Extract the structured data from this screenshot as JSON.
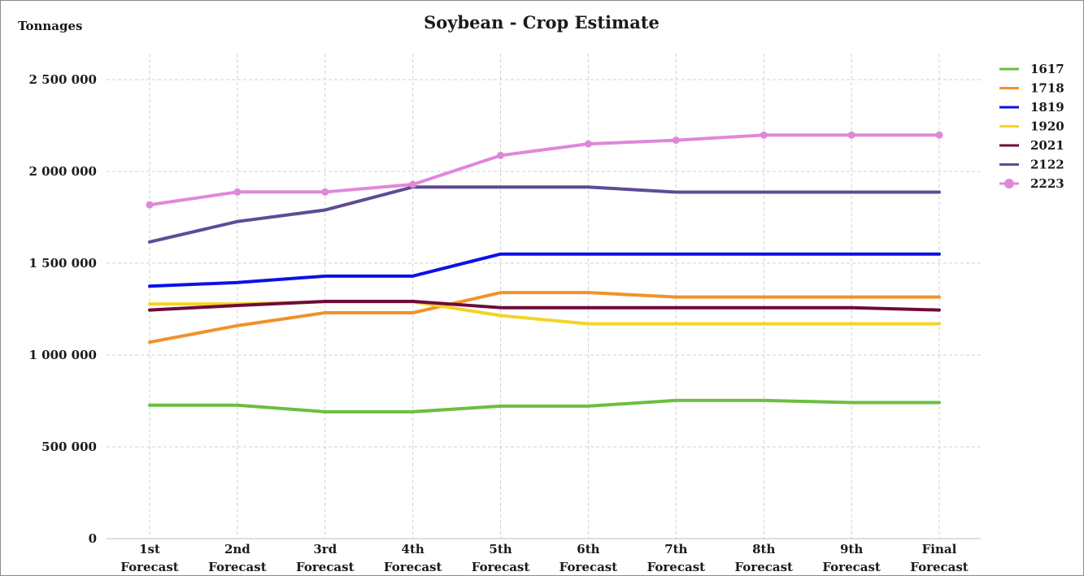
{
  "chart_data": {
    "type": "line",
    "title": "Soybean - Crop Estimate",
    "ylabel": "Tonnages",
    "xlabel": "",
    "ylim": [
      0,
      2500000
    ],
    "ytick_values": [
      0,
      500000,
      1000000,
      1500000,
      2000000,
      2500000
    ],
    "ytick_labels": [
      "0",
      "500 000",
      "1 000 000",
      "1 500 000",
      "2 000 000",
      "2 500 000"
    ],
    "categories": [
      [
        "1st",
        "Forecast"
      ],
      [
        "2nd",
        "Forecast"
      ],
      [
        "3rd",
        "Forecast"
      ],
      [
        "4th",
        "Forecast"
      ],
      [
        "5th",
        "Forecast"
      ],
      [
        "6th",
        "Forecast"
      ],
      [
        "7th",
        "Forecast"
      ],
      [
        "8th",
        "Forecast"
      ],
      [
        "9th",
        "Forecast"
      ],
      [
        "Final",
        "Forecast"
      ]
    ],
    "grid": true,
    "legend_position": "right",
    "series": [
      {
        "name": "1617",
        "color": "#6abf40",
        "markers": false,
        "values": [
          727000,
          727000,
          691000,
          691000,
          722000,
          722000,
          753000,
          753000,
          741000,
          741000
        ]
      },
      {
        "name": "1718",
        "color": "#f0922a",
        "markers": false,
        "values": [
          1070000,
          1160000,
          1230000,
          1230000,
          1340000,
          1340000,
          1316000,
          1316000,
          1316000,
          1316000
        ]
      },
      {
        "name": "1819",
        "color": "#0a12e6",
        "markers": false,
        "values": [
          1375000,
          1395000,
          1430000,
          1430000,
          1550000,
          1550000,
          1550000,
          1550000,
          1550000,
          1550000
        ]
      },
      {
        "name": "1920",
        "color": "#f5d327",
        "markers": false,
        "values": [
          1278000,
          1278000,
          1290000,
          1290000,
          1215000,
          1170000,
          1170000,
          1170000,
          1170000,
          1170000
        ]
      },
      {
        "name": "2021",
        "color": "#6e0b3a",
        "markers": false,
        "values": [
          1245000,
          1270000,
          1292000,
          1292000,
          1258000,
          1258000,
          1258000,
          1258000,
          1258000,
          1245000
        ]
      },
      {
        "name": "2122",
        "color": "#5f4b96",
        "markers": false,
        "values": [
          1616000,
          1727000,
          1790000,
          1915000,
          1915000,
          1915000,
          1887000,
          1887000,
          1887000,
          1887000
        ]
      },
      {
        "name": "2223",
        "color": "#e088d8",
        "markers": true,
        "values": [
          1818000,
          1888000,
          1888000,
          1929000,
          2087000,
          2150000,
          2170000,
          2198000,
          2198000,
          2198000
        ]
      }
    ]
  }
}
